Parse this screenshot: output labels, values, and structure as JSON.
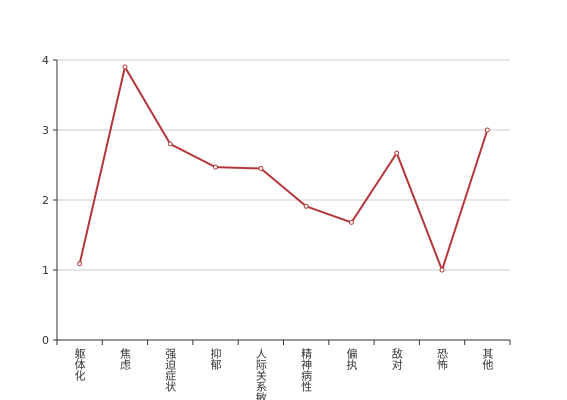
{
  "chart_data": {
    "type": "line",
    "categories": [
      "躯体化",
      "焦虑",
      "强迫症状",
      "抑郁",
      "人际关系敏感",
      "精神病性",
      "偏执",
      "敌对",
      "恐怖",
      "其他"
    ],
    "series": [
      {
        "color": "#b5363a",
        "values": [
          1.09,
          3.9,
          2.8,
          2.47,
          2.45,
          1.91,
          1.68,
          2.67,
          1.0,
          3.0
        ]
      }
    ],
    "ylim": [
      0,
      4
    ],
    "yticks": [
      0,
      1,
      2,
      3,
      4
    ],
    "grid": true
  }
}
